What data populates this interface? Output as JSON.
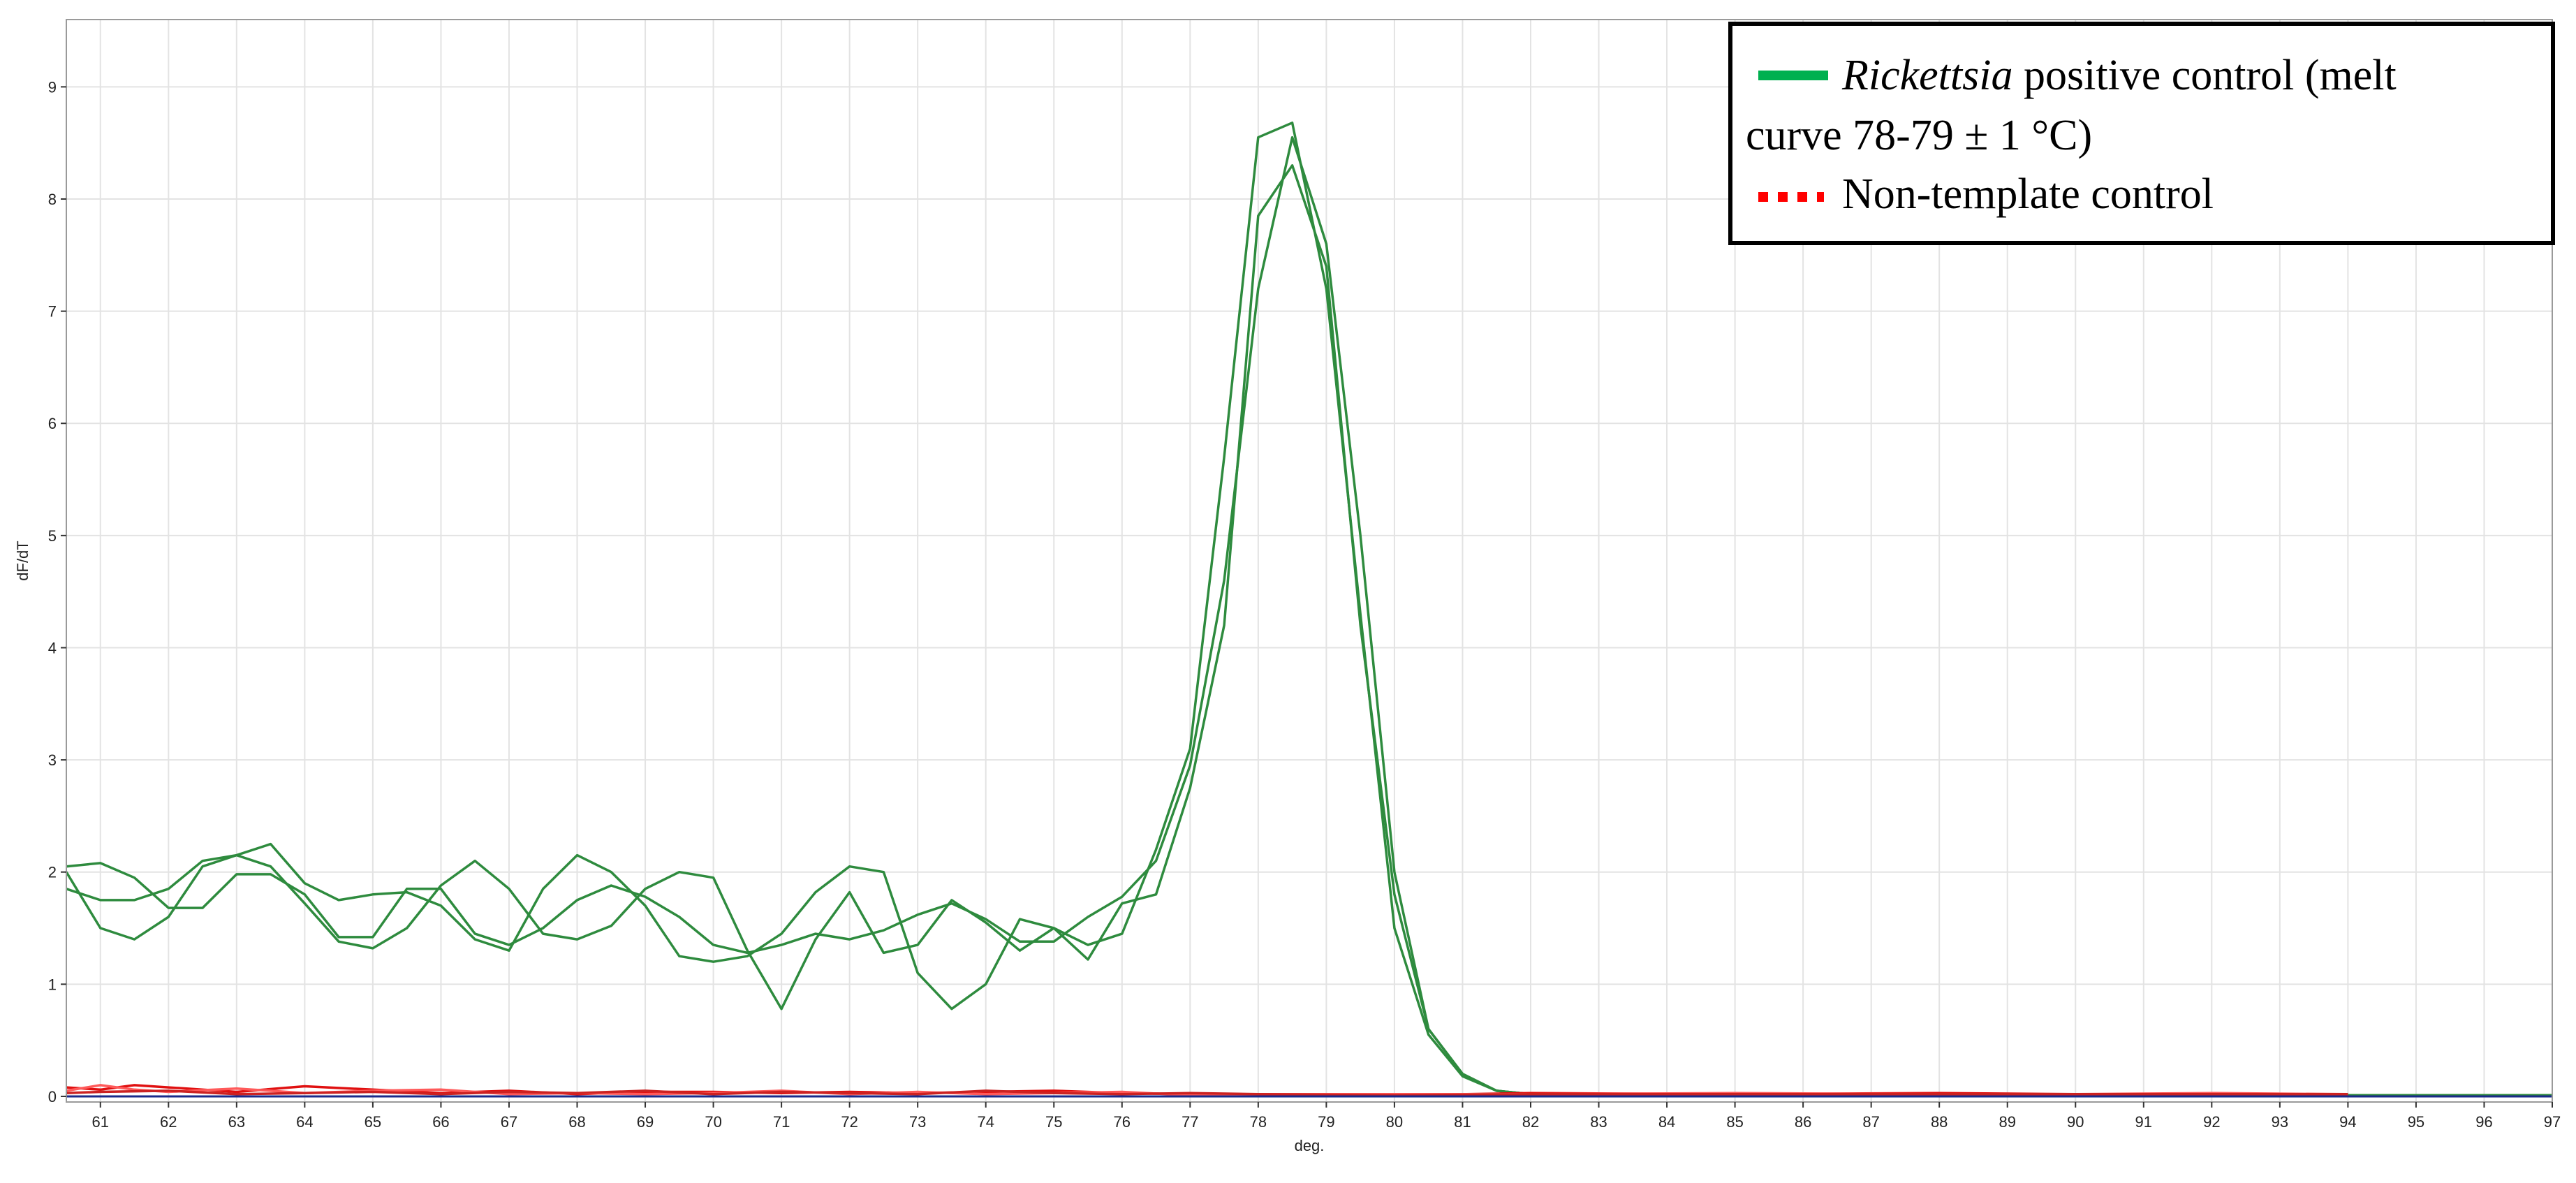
{
  "chart_data": {
    "type": "line",
    "xlabel": "deg.",
    "ylabel": "dF/dT",
    "xlim": [
      60.5,
      97
    ],
    "ylim": [
      -0.05,
      9.6
    ],
    "x_ticks": [
      61,
      62,
      63,
      64,
      65,
      66,
      67,
      68,
      69,
      70,
      71,
      72,
      73,
      74,
      75,
      76,
      77,
      78,
      79,
      80,
      81,
      82,
      83,
      84,
      85,
      86,
      87,
      88,
      89,
      90,
      91,
      92,
      93,
      94,
      95,
      96,
      97
    ],
    "y_ticks": [
      0,
      1,
      2,
      3,
      4,
      5,
      6,
      7,
      8,
      9
    ],
    "grid": true,
    "legend": {
      "placement": "top-right",
      "entries": [
        {
          "italic": "Rickettsia",
          "text": " positive control (melt",
          "text2": "curve 78-79 ± 1 °C)",
          "color": "#00b050",
          "style": "solid"
        },
        {
          "text": "Non-template control",
          "color": "#ff0000",
          "style": "dotted"
        }
      ]
    },
    "series": [
      {
        "color": "#2e8b3e",
        "x": [
          60.5,
          61,
          61.5,
          62,
          62.5,
          63,
          63.5,
          64,
          64.5,
          65,
          65.5,
          66,
          66.5,
          67,
          67.5,
          68,
          68.5,
          69,
          69.5,
          70,
          70.5,
          71,
          71.5,
          72,
          72.5,
          73,
          73.5,
          74,
          74.5,
          75,
          75.5,
          76,
          76.5,
          77,
          77.5,
          78,
          78.5,
          79,
          79.5,
          80,
          80.5,
          81,
          81.5,
          82,
          83,
          85,
          90,
          95,
          97
        ],
        "y": [
          2.05,
          2.08,
          1.95,
          1.68,
          1.68,
          1.98,
          1.98,
          1.8,
          1.42,
          1.42,
          1.85,
          1.85,
          1.45,
          1.35,
          1.5,
          1.75,
          1.88,
          1.78,
          1.6,
          1.35,
          1.28,
          1.35,
          1.45,
          1.4,
          1.48,
          1.62,
          1.72,
          1.58,
          1.38,
          1.38,
          1.6,
          1.78,
          2.1,
          2.95,
          4.6,
          7.2,
          8.55,
          7.6,
          5.0,
          2.0,
          0.6,
          0.2,
          0.05,
          0.02,
          0.01,
          0.01,
          0.01,
          0.01,
          0.01
        ]
      },
      {
        "color": "#2e8b3e",
        "x": [
          60.5,
          61,
          61.5,
          62,
          62.5,
          63,
          63.5,
          64,
          64.5,
          65,
          65.5,
          66,
          66.5,
          67,
          67.5,
          68,
          68.5,
          69,
          69.5,
          70,
          70.5,
          71,
          71.5,
          72,
          72.5,
          73,
          73.5,
          74,
          74.5,
          75,
          75.5,
          76,
          76.5,
          77,
          77.5,
          78,
          78.5,
          79,
          79.5,
          80,
          80.5,
          81,
          81.5,
          82,
          83,
          85,
          90,
          95,
          97
        ],
        "y": [
          2.0,
          1.5,
          1.4,
          1.6,
          2.05,
          2.15,
          2.05,
          1.72,
          1.38,
          1.32,
          1.5,
          1.88,
          2.1,
          1.85,
          1.45,
          1.4,
          1.52,
          1.85,
          2.0,
          1.95,
          1.3,
          0.78,
          1.4,
          1.82,
          1.28,
          1.35,
          1.75,
          1.55,
          1.3,
          1.5,
          1.35,
          1.45,
          2.2,
          3.1,
          5.7,
          8.55,
          8.68,
          7.2,
          4.3,
          1.5,
          0.55,
          0.18,
          0.05,
          0.02,
          0.01,
          0.01,
          0.01,
          0.01,
          0.01
        ]
      },
      {
        "color": "#2e8b3e",
        "x": [
          60.5,
          61,
          61.5,
          62,
          62.5,
          63,
          63.5,
          64,
          64.5,
          65,
          65.5,
          66,
          66.5,
          67,
          67.5,
          68,
          68.5,
          69,
          69.5,
          70,
          70.5,
          71,
          71.5,
          72,
          72.5,
          73,
          73.5,
          74,
          74.5,
          75,
          75.5,
          76,
          76.5,
          77,
          77.5,
          78,
          78.5,
          79,
          79.5,
          80,
          80.5,
          81,
          81.5,
          82,
          83,
          85,
          90,
          95,
          97
        ],
        "y": [
          1.85,
          1.75,
          1.75,
          1.85,
          2.1,
          2.15,
          2.25,
          1.9,
          1.75,
          1.8,
          1.82,
          1.7,
          1.4,
          1.3,
          1.85,
          2.15,
          2.0,
          1.7,
          1.25,
          1.2,
          1.25,
          1.45,
          1.82,
          2.05,
          2.0,
          1.1,
          0.78,
          1.0,
          1.58,
          1.5,
          1.22,
          1.72,
          1.8,
          2.75,
          4.2,
          7.85,
          8.3,
          7.4,
          4.2,
          1.8,
          0.6,
          0.2,
          0.05,
          0.02,
          0.01,
          0.01,
          0.01,
          0.01,
          0.01
        ]
      },
      {
        "color": "#e01010",
        "x": [
          60.5,
          61,
          61.5,
          62,
          63,
          64,
          65,
          66,
          67,
          68,
          69,
          70,
          71,
          72,
          73,
          74,
          75,
          76,
          77,
          78,
          80,
          82,
          85,
          88,
          90,
          92,
          94
        ],
        "y": [
          0.08,
          0.06,
          0.1,
          0.08,
          0.04,
          0.09,
          0.06,
          0.03,
          0.05,
          0.02,
          0.04,
          0.04,
          0.03,
          0.04,
          0.03,
          0.04,
          0.05,
          0.03,
          0.02,
          0.02,
          0.01,
          0.03,
          0.02,
          0.03,
          0.02,
          0.02,
          0.02
        ]
      },
      {
        "color": "#ff5a5a",
        "x": [
          60.5,
          61,
          61.5,
          62,
          63,
          64,
          65,
          66,
          67,
          68,
          69,
          70,
          71,
          72,
          73,
          74,
          75,
          76,
          77,
          78,
          80,
          82,
          85,
          88,
          90,
          92,
          94
        ],
        "y": [
          0.05,
          0.1,
          0.06,
          0.04,
          0.07,
          0.03,
          0.05,
          0.06,
          0.02,
          0.03,
          0.02,
          0.03,
          0.05,
          0.02,
          0.04,
          0.02,
          0.03,
          0.04,
          0.01,
          0.02,
          0.02,
          0.02,
          0.03,
          0.02,
          0.02,
          0.03,
          0.02
        ]
      },
      {
        "color": "#cc2222",
        "x": [
          60.5,
          61,
          62,
          63,
          64,
          65,
          66,
          67,
          68,
          69,
          70,
          71,
          72,
          73,
          74,
          75,
          76,
          77,
          78,
          80,
          82,
          85,
          88,
          90,
          92,
          94
        ],
        "y": [
          0.03,
          0.04,
          0.05,
          0.02,
          0.03,
          0.04,
          0.02,
          0.04,
          0.03,
          0.05,
          0.02,
          0.04,
          0.03,
          0.02,
          0.05,
          0.03,
          0.02,
          0.03,
          0.02,
          0.01,
          0.02,
          0.02,
          0.02,
          0.02,
          0.02,
          0.02
        ]
      },
      {
        "color": "#1a2a8a",
        "x": [
          60.5,
          97
        ],
        "y": [
          0.0,
          0.0
        ]
      }
    ]
  }
}
